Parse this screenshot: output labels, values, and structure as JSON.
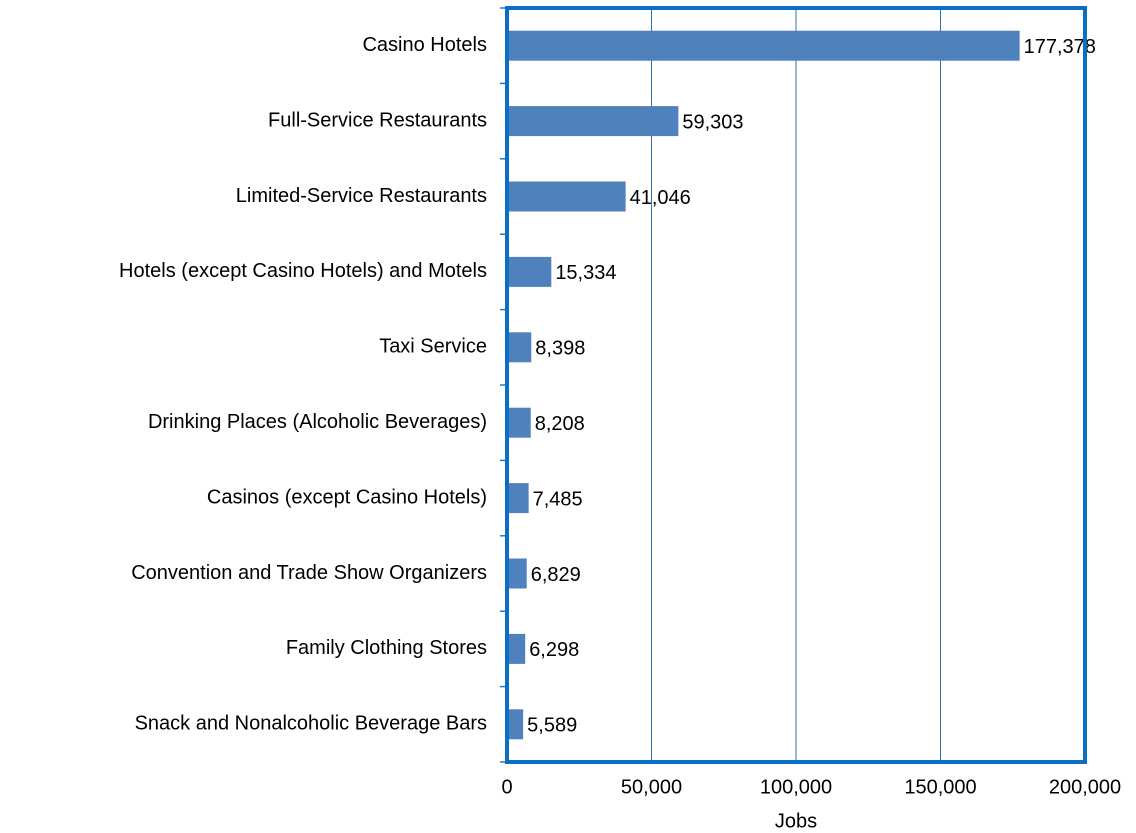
{
  "chart_data": {
    "type": "hbar",
    "x_label": "Jobs",
    "categories": [
      "Casino Hotels",
      "Full-Service Restaurants",
      "Limited-Service Restaurants",
      "Hotels (except Casino Hotels) and Motels",
      "Taxi Service",
      "Drinking Places (Alcoholic Beverages)",
      "Casinos (except Casino Hotels)",
      "Convention and Trade Show Organizers",
      "Family Clothing Stores",
      "Snack and Nonalcoholic Beverage Bars"
    ],
    "values": [
      177378,
      59303,
      41046,
      15334,
      8398,
      8208,
      7485,
      6829,
      6298,
      5589
    ],
    "value_labels": [
      "177,378",
      "59,303",
      "41,046",
      "15,334",
      "8,398",
      "8,208",
      "7,485",
      "6,829",
      "6,298",
      "5,589"
    ],
    "color": "#4f81bd",
    "xlim": [
      0,
      200000
    ],
    "xticks": [
      0,
      {
        "value": 50000,
        "label": "50,000"
      },
      {
        "value": 100000,
        "label": "100,000"
      },
      {
        "value": 150000,
        "label": "150,000"
      },
      {
        "value": 200000,
        "label": "200,000"
      }
    ],
    "grid": true
  }
}
